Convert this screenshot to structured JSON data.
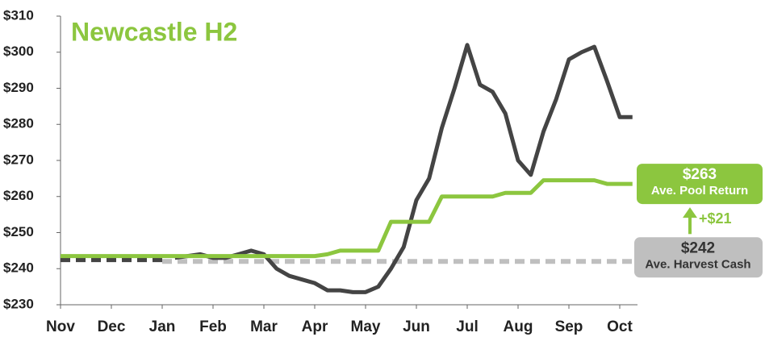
{
  "chart_data": {
    "type": "line",
    "title": "Newcastle H2",
    "categories": [
      "Nov",
      null,
      null,
      null,
      "Dec",
      null,
      null,
      null,
      "Jan",
      null,
      null,
      null,
      "Feb",
      null,
      null,
      null,
      "Mar",
      null,
      null,
      null,
      "Apr",
      null,
      null,
      null,
      "May",
      null,
      null,
      null,
      "Jun",
      null,
      null,
      null,
      "Jul",
      null,
      null,
      null,
      "Aug",
      null,
      null,
      null,
      "Sep",
      null,
      null,
      null,
      "Oct",
      null
    ],
    "series": [
      {
        "color": "#444444",
        "dash": true,
        "values": [
          242.5,
          242.5,
          242.5,
          242.5,
          242.5,
          242.5,
          242.5,
          242.5,
          242.5,
          null,
          null,
          null,
          null,
          null,
          null,
          null,
          null,
          null,
          null,
          null,
          null,
          null,
          null,
          null,
          null,
          null,
          null,
          null,
          null,
          null,
          null,
          null,
          null,
          null,
          null,
          null,
          null,
          null,
          null,
          null,
          null,
          null,
          null,
          null,
          null,
          null
        ]
      },
      {
        "name": "Ave. Harvest Cash",
        "color": "#bfbfbf",
        "dash": true,
        "values": [
          null,
          null,
          null,
          null,
          null,
          null,
          null,
          null,
          242,
          242,
          242,
          242,
          242,
          242,
          242,
          242,
          242,
          242,
          242,
          242,
          242,
          242,
          242,
          242,
          242,
          242,
          242,
          242,
          242,
          242,
          242,
          242,
          242,
          242,
          242,
          242,
          242,
          242,
          242,
          242,
          242,
          242,
          242,
          242,
          242,
          242
        ]
      },
      {
        "color": "#444444",
        "dash": false,
        "values": [
          null,
          null,
          null,
          null,
          null,
          null,
          null,
          null,
          null,
          243,
          243.5,
          244,
          243,
          243,
          244,
          245,
          244,
          240,
          238,
          237,
          236,
          234,
          234,
          233.5,
          233.5,
          235,
          240,
          246,
          259,
          265,
          279,
          290,
          302,
          291,
          289,
          283,
          270,
          266,
          278,
          287,
          298,
          300,
          301.5,
          292,
          282,
          282
        ]
      },
      {
        "name": "Ave. Pool Return",
        "color": "#8cc63f",
        "dash": false,
        "values": [
          243.5,
          243.5,
          243.5,
          243.5,
          243.5,
          243.5,
          243.5,
          243.5,
          243.5,
          243.5,
          243.5,
          243.5,
          243.5,
          243.5,
          243.5,
          243.5,
          243.5,
          243.5,
          243.5,
          243.5,
          243.5,
          244,
          245,
          245,
          245,
          245,
          253,
          253,
          253,
          253,
          260,
          260,
          260,
          260,
          260,
          261,
          261,
          261,
          264.5,
          264.5,
          264.5,
          264.5,
          264.5,
          263.5,
          263.5,
          263.5
        ]
      }
    ],
    "annotations": {
      "pool_value": "$263",
      "pool_label": "Ave. Pool Return",
      "cash_value": "$242",
      "cash_label": "Ave. Harvest Cash",
      "difference": "+$21"
    },
    "ylim": [
      230,
      310
    ],
    "yticks": [
      {
        "value": 230,
        "label": "$230"
      },
      {
        "value": 240,
        "label": "$240"
      },
      {
        "value": 250,
        "label": "$250"
      },
      {
        "value": 260,
        "label": "$260"
      },
      {
        "value": 270,
        "label": "$270"
      },
      {
        "value": 280,
        "label": "$280"
      },
      {
        "value": 290,
        "label": "$290"
      },
      {
        "value": 300,
        "label": "$300"
      },
      {
        "value": 310,
        "label": "$310"
      }
    ],
    "grid": false
  }
}
